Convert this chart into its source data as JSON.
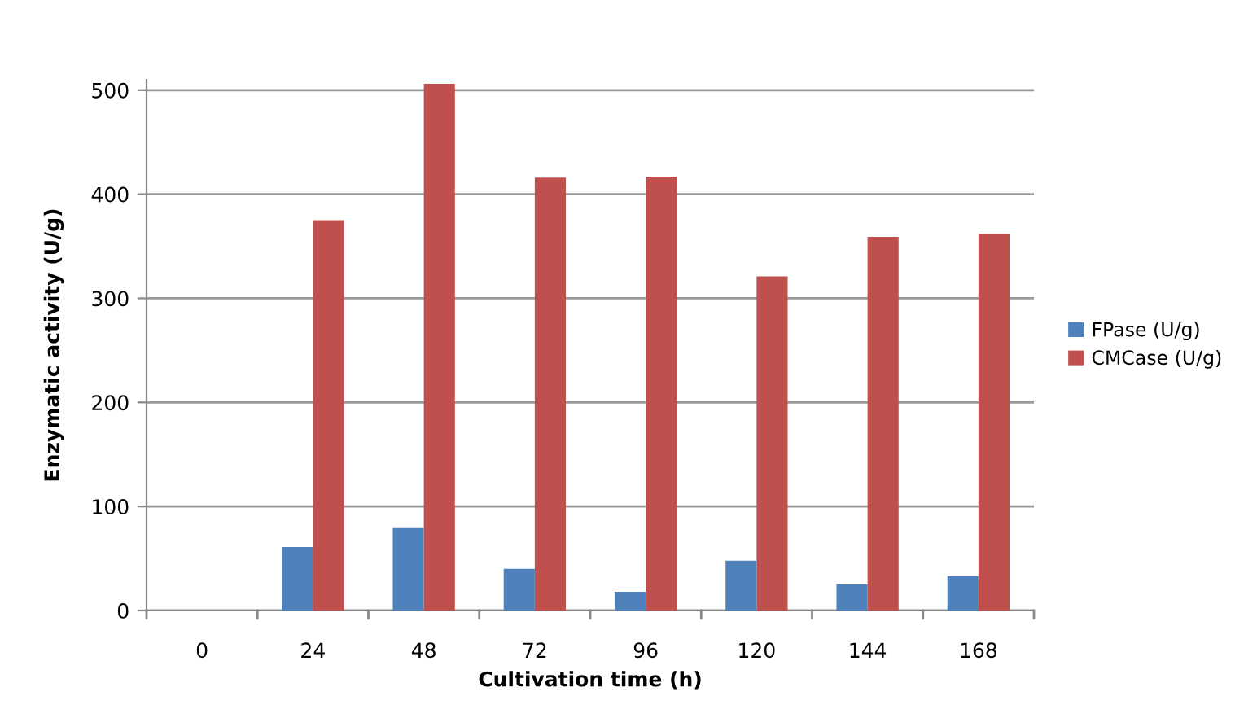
{
  "chart_data": {
    "type": "bar",
    "xlabel": "Cultivation time (h)",
    "ylabel": "Enzymatic activity (U/g)",
    "categories": [
      "0",
      "24",
      "48",
      "72",
      "96",
      "120",
      "144",
      "168"
    ],
    "series": [
      {
        "name": "FPase (U/g)",
        "color": "#4f81bd",
        "values": [
          0,
          61,
          80,
          40,
          18,
          48,
          25,
          33
        ]
      },
      {
        "name": "CMCase (U/g)",
        "color": "#c0504d",
        "values": [
          0,
          375,
          506,
          416,
          417,
          321,
          359,
          362
        ]
      }
    ],
    "ylim": [
      0,
      510
    ],
    "yticks": [
      0,
      100,
      200,
      300,
      400,
      500
    ],
    "grid": "y",
    "legend": "right"
  }
}
